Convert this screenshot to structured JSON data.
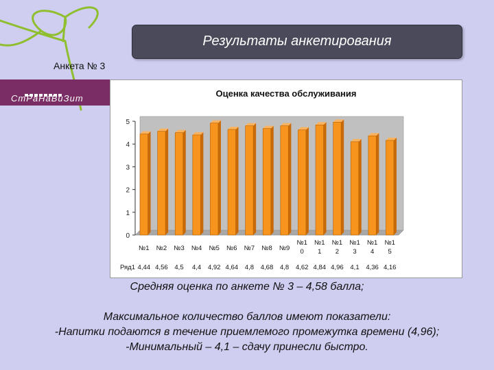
{
  "slide": {
    "title": "Результаты анкетирования",
    "survey_label": "Анкета № 3",
    "brand_text": "СтРаНаВиЗит",
    "avg_text": "Средняя оценка по анкете № 3 – 4,58 балла;",
    "max_heading": "Максимальное количество баллов имеют показатели:",
    "max_item": "-Напитки подаются в течение приемлемого промежутка времени (4,96);",
    "min_item": "-Минимальный – 4,1 – сдачу принесли быстро."
  },
  "chart_data": {
    "type": "bar",
    "title": "Оценка качества обслуживания",
    "series": [
      {
        "name": "Ряд1",
        "values": [
          4.44,
          4.56,
          4.5,
          4.4,
          4.92,
          4.64,
          4.8,
          4.68,
          4.8,
          4.62,
          4.84,
          4.96,
          4.1,
          4.36,
          4.16
        ]
      }
    ],
    "categories": [
      [
        "№1"
      ],
      [
        "№2"
      ],
      [
        "№3"
      ],
      [
        "№4"
      ],
      [
        "№5"
      ],
      [
        "№6"
      ],
      [
        "№7"
      ],
      [
        "№8"
      ],
      [
        "№9"
      ],
      [
        "№1",
        "0"
      ],
      [
        "№1",
        "1"
      ],
      [
        "№1",
        "2"
      ],
      [
        "№1",
        "3"
      ],
      [
        "№1",
        "4"
      ],
      [
        "№1",
        "5"
      ]
    ],
    "value_labels": [
      "4,44",
      "4,56",
      "4,5",
      "4,4",
      "4,92",
      "4,64",
      "4,8",
      "4,68",
      "4,8",
      "4,62",
      "4,84",
      "4,96",
      "4,1",
      "4,36",
      "4,16"
    ],
    "ylim": [
      0,
      5
    ],
    "yticks": [
      0,
      1,
      2,
      3,
      4,
      5
    ],
    "grid": false,
    "bar_color": "#f7941d",
    "bar_dark": "#c96a0a",
    "wall_color": "#c0c0c0"
  }
}
